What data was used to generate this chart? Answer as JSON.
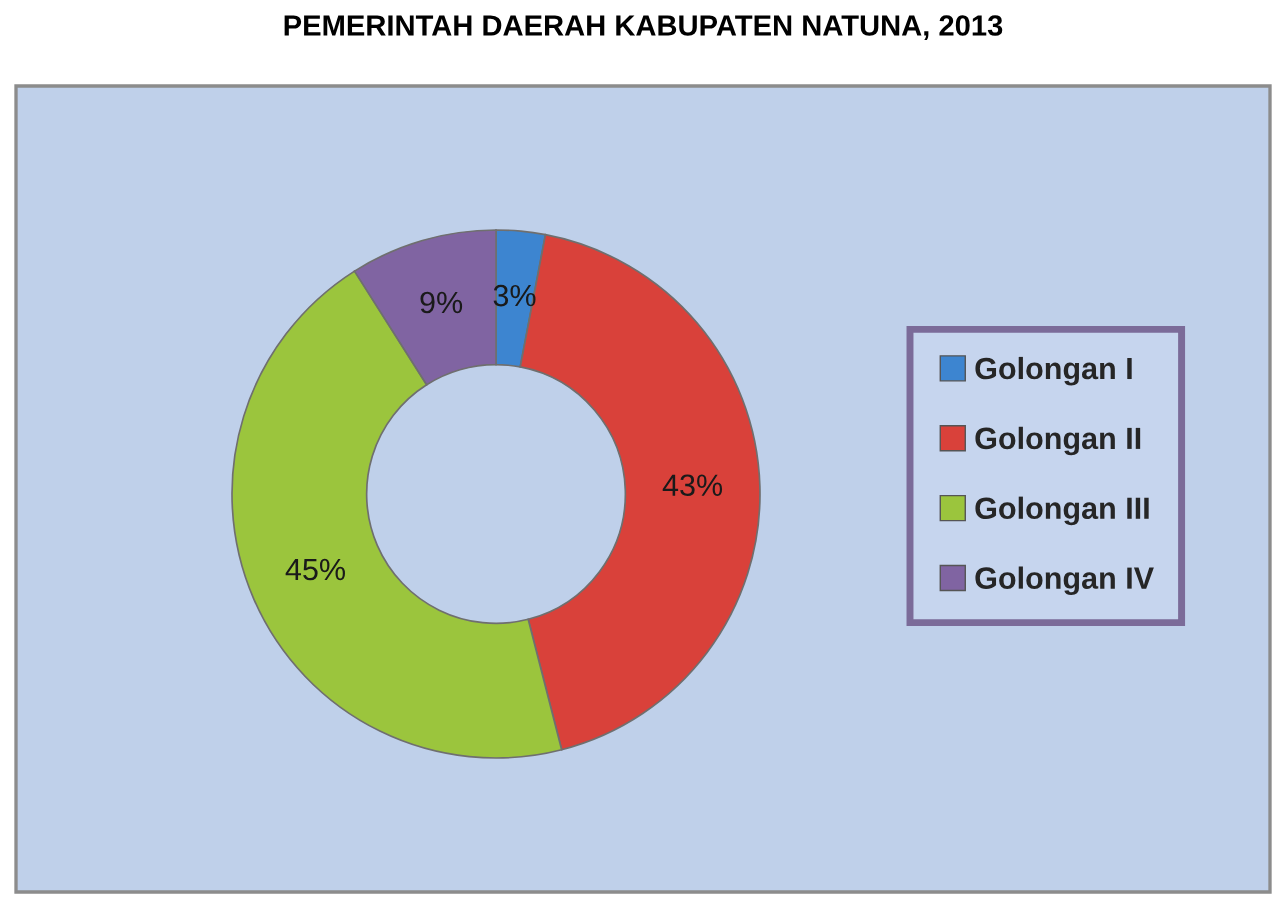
{
  "chart_data": {
    "type": "donut",
    "title": "PEMERINTAH DAERAH KABUPATEN NATUNA, 2013",
    "categories": [
      "Golongan I",
      "Golongan II",
      "Golongan III",
      "Golongan IV"
    ],
    "values": [
      3,
      43,
      45,
      9
    ],
    "colors": [
      "#3d85d0",
      "#d9413a",
      "#9bc53d",
      "#8064a2"
    ],
    "value_labels": [
      "3%",
      "43%",
      "45%",
      "9%"
    ],
    "legend": "right"
  }
}
